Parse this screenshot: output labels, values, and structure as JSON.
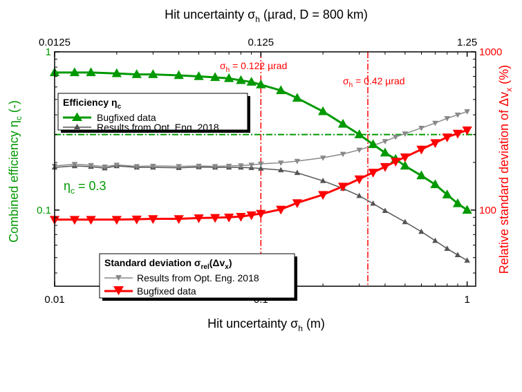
{
  "chart_data": {
    "type": "line",
    "x_scale": "log",
    "xlim": [
      0.01,
      1.1
    ],
    "x_ticks": [
      {
        "value": 0.01,
        "label": "0.01"
      },
      {
        "value": 0.1,
        "label": "0.1"
      },
      {
        "value": 1,
        "label": "1"
      }
    ],
    "x_label": {
      "main": "Hit uncertainty σ",
      "sub": "h",
      "tail": " (m)"
    },
    "top_axis": {
      "label": {
        "main": "Hit uncertainty σ",
        "sub": "h",
        "tail": " (µrad, D = 800 km)"
      },
      "ticks": [
        {
          "value": 0.01,
          "label": "0.0125"
        },
        {
          "value": 0.1,
          "label": "0.125"
        },
        {
          "value": 1,
          "label": "1.25"
        }
      ]
    },
    "left_axis": {
      "scale": "log",
      "lim": [
        0.033,
        1.0
      ],
      "ticks": [
        {
          "value": 0.1,
          "label": "0.1"
        },
        {
          "value": 1,
          "label": "1"
        }
      ],
      "label": {
        "main": "Combined efficiency η",
        "sub": "c",
        "tail": " (-)"
      },
      "color": "#009900"
    },
    "right_axis": {
      "scale": "log",
      "lim": [
        33,
        1000
      ],
      "ticks": [
        {
          "value": 100,
          "label": "100"
        },
        {
          "value": 1000,
          "label": "1000"
        }
      ],
      "label": {
        "main": "Relative standard deviation of Δv",
        "sub": "x",
        "tail": " (%)"
      },
      "color": "#ff0000"
    },
    "x": [
      0.01,
      0.012,
      0.0146,
      0.0177,
      0.0215,
      0.0261,
      0.0316,
      0.0384,
      0.0466,
      0.0566,
      0.0687,
      0.0834,
      0.1,
      0.122,
      0.15,
      0.2,
      0.25,
      0.3,
      0.35,
      0.4,
      0.45,
      0.5,
      0.6,
      0.7,
      0.8,
      0.9,
      1.0
    ],
    "efficiency_series": [
      {
        "name": "Bugfixed data",
        "color": "#009900",
        "marker": "triangle-up",
        "x": [
          0.01,
          0.0125,
          0.015,
          0.02,
          0.025,
          0.03,
          0.04,
          0.05,
          0.06,
          0.07,
          0.08,
          0.09,
          0.1,
          0.125,
          0.15,
          0.2,
          0.25,
          0.3,
          0.35,
          0.4,
          0.45,
          0.5,
          0.6,
          0.7,
          0.8,
          0.9,
          1.0
        ],
        "values": [
          0.74,
          0.74,
          0.74,
          0.73,
          0.72,
          0.72,
          0.71,
          0.7,
          0.69,
          0.68,
          0.66,
          0.645,
          0.62,
          0.57,
          0.51,
          0.42,
          0.35,
          0.3,
          0.26,
          0.23,
          0.21,
          0.19,
          0.165,
          0.145,
          0.125,
          0.11,
          0.1
        ]
      },
      {
        "name": "Results from Opt. Eng. 2018",
        "color": "#555555",
        "marker": "triangle-up",
        "x": [
          0.01,
          0.0125,
          0.015,
          0.0175,
          0.02,
          0.025,
          0.03,
          0.04,
          0.05,
          0.06,
          0.07,
          0.08,
          0.09,
          0.1,
          0.125,
          0.15,
          0.2,
          0.25,
          0.3,
          0.35,
          0.4,
          0.5,
          0.6,
          0.7,
          0.8,
          0.9,
          1.0
        ],
        "values": [
          0.186,
          0.19,
          0.188,
          0.184,
          0.19,
          0.186,
          0.186,
          0.185,
          0.187,
          0.186,
          0.186,
          0.186,
          0.185,
          0.183,
          0.179,
          0.172,
          0.153,
          0.137,
          0.123,
          0.11,
          0.099,
          0.084,
          0.073,
          0.064,
          0.057,
          0.052,
          0.048
        ]
      }
    ],
    "std_series": [
      {
        "name": "Results from Opt. Eng. 2018",
        "color": "#888888",
        "marker": "triangle-down",
        "x": [
          0.01,
          0.0125,
          0.015,
          0.0175,
          0.02,
          0.025,
          0.03,
          0.04,
          0.05,
          0.06,
          0.07,
          0.08,
          0.09,
          0.1,
          0.125,
          0.15,
          0.2,
          0.25,
          0.3,
          0.35,
          0.4,
          0.45,
          0.5,
          0.6,
          0.7,
          0.8,
          0.9,
          1.0
        ],
        "values": [
          190,
          195,
          192,
          188,
          193,
          189,
          190,
          189,
          190,
          189,
          190,
          191,
          193,
          196,
          199,
          204,
          214,
          226,
          240,
          256,
          272,
          290,
          304,
          330,
          355,
          380,
          400,
          420
        ]
      },
      {
        "name": "Bugfixed data",
        "color": "#ff0000",
        "marker": "triangle-down",
        "x": [
          0.01,
          0.0125,
          0.015,
          0.02,
          0.025,
          0.03,
          0.04,
          0.05,
          0.06,
          0.07,
          0.08,
          0.09,
          0.1,
          0.125,
          0.15,
          0.2,
          0.25,
          0.3,
          0.35,
          0.4,
          0.45,
          0.5,
          0.6,
          0.7,
          0.8,
          0.9,
          1.0
        ],
        "values": [
          87,
          87,
          87,
          87,
          87.5,
          88,
          88,
          89,
          89.5,
          90,
          91,
          93,
          95,
          101,
          111,
          125,
          141,
          157,
          173,
          188,
          203,
          216,
          242,
          266,
          289,
          305,
          320
        ]
      }
    ],
    "reference_lines": [
      {
        "orientation": "horizontal",
        "axis": "left",
        "value": 0.3,
        "color": "#009900",
        "style": "dash-dot"
      },
      {
        "orientation": "vertical",
        "value": 0.1,
        "color": "#ff0000",
        "style": "dash-dot"
      },
      {
        "orientation": "vertical",
        "value": 0.33,
        "color": "#ff0000",
        "style": "dash-dot"
      }
    ],
    "annotations": [
      {
        "id": "eta_ref",
        "main": "η",
        "sub": "c",
        "tail": " = 0.3",
        "color": "#009900"
      },
      {
        "id": "sigma1",
        "main": "σ",
        "sub": "h",
        "tail": " = 0.122 µrad",
        "color": "#ff0000"
      },
      {
        "id": "sigma2",
        "main": "σ",
        "sub": "h",
        "tail": " = 0.42 µrad",
        "color": "#ff0000"
      }
    ],
    "legends": [
      {
        "id": "efficiency",
        "title": {
          "main": "Efficiency η",
          "sub": "c"
        },
        "position": "upper-left",
        "entries": [
          {
            "label": "Bugfixed data",
            "color": "#009900",
            "marker": "triangle-up",
            "width": 3
          },
          {
            "label": "Results from Opt. Eng. 2018",
            "color": "#555555",
            "marker": "triangle-up",
            "width": 1.5
          }
        ]
      },
      {
        "id": "std",
        "title": {
          "main": "Standard deviation σ",
          "sub": "rel",
          "tail": "(Δv",
          "sub2": "x",
          "tail2": ")"
        },
        "position": "lower-left",
        "entries": [
          {
            "label": "Results from Opt. Eng. 2018",
            "color": "#888888",
            "marker": "triangle-down",
            "width": 1.5
          },
          {
            "label": "Bugfixed data",
            "color": "#ff0000",
            "marker": "triangle-down",
            "width": 3
          }
        ]
      }
    ]
  }
}
